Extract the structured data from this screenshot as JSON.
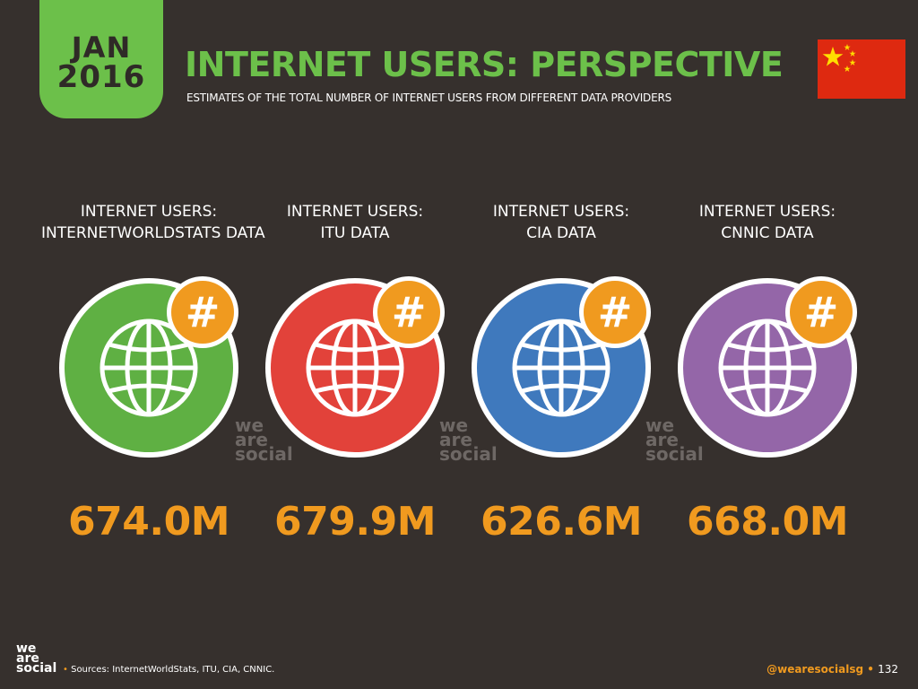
{
  "badge": {
    "month": "JAN",
    "year": "2016"
  },
  "header": {
    "title": "INTERNET USERS: PERSPECTIVE",
    "subtitle": "ESTIMATES OF THE TOTAL NUMBER OF INTERNET USERS FROM DIFFERENT DATA PROVIDERS"
  },
  "flag": {
    "country_icon": "china-flag-icon",
    "red": "#de2910",
    "yellow": "#ffde00"
  },
  "columns": [
    {
      "label_line1": "INTERNET USERS:",
      "label_line2": "INTERNETWORLDSTATS DATA",
      "value": "674.0M",
      "color": "#5fb043",
      "icon": "globe-icon"
    },
    {
      "label_line1": "INTERNET USERS:",
      "label_line2": "ITU DATA",
      "value": "679.9M",
      "color": "#e2423a",
      "icon": "globe-icon"
    },
    {
      "label_line1": "INTERNET USERS:",
      "label_line2": "CIA DATA",
      "value": "626.6M",
      "color": "#3f79bd",
      "icon": "globe-icon"
    },
    {
      "label_line1": "INTERNET USERS:",
      "label_line2": "CNNIC DATA",
      "value": "668.0M",
      "color": "#9466a8",
      "icon": "globe-icon"
    }
  ],
  "badge_symbol": "#",
  "badge_color": "#f09a1f",
  "logo": {
    "line1": "we",
    "line2": "are",
    "line3": "social"
  },
  "footer": {
    "source": "Sources: InternetWorldStats, ITU, CIA, CNNIC.",
    "handle": "@wearesocialsg",
    "page": "132",
    "bullet": "•"
  }
}
